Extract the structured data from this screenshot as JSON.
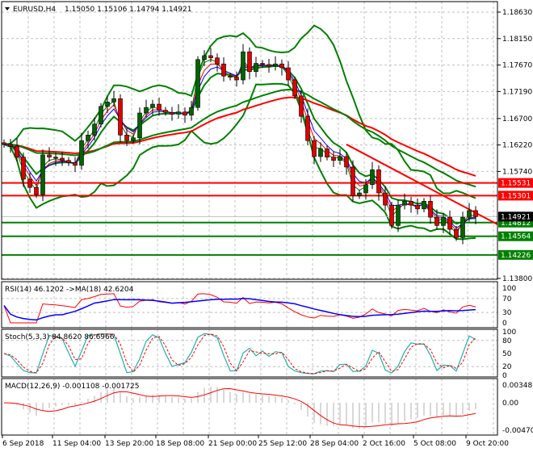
{
  "header": {
    "symbol": "EURUSD,H4",
    "ohlc": "1.15050 1.15106 1.14794 1.14921"
  },
  "panels": {
    "rsi_label": "RSI(14) 46.1202  ->MA(18) 42.6204",
    "stoch_label": "Stoch(5,3,3) 84.8620 86.6966",
    "macd_label": "MACD(12,26,9) -0.001108 -0.001725"
  },
  "colors": {
    "bull_candle": "#006400",
    "bear_candle": "#e00000",
    "bollinger": "#008000",
    "resistance": "#ff0000",
    "support": "#008000",
    "rsi": "#ff0000",
    "rsi_ma": "#0000ff",
    "stoch_main": "#20b2aa",
    "stoch_signal": "#ff0000",
    "macd_signal": "#ff0000",
    "macd_hist": "#b0b0b0"
  },
  "chart_data": {
    "type": "candlestick",
    "title": "EURUSD,H4",
    "price_ticks": [
      "1.18630",
      "1.18150",
      "1.17670",
      "1.17190",
      "1.16700",
      "1.16220",
      "1.15740",
      "1.13800"
    ],
    "ylim": [
      1.138,
      1.1893
    ],
    "x_tick_labels": [
      "6 Sep 2018",
      "11 Sep 04:00",
      "13 Sep 20:00",
      "18 Sep 08:00",
      "21 Sep 00:00",
      "25 Sep 12:00",
      "28 Sep 04:00",
      "2 Oct 16:00",
      "5 Oct 08:00",
      "9 Oct 20:00"
    ],
    "closes": [
      1.1623,
      1.162,
      1.16,
      1.156,
      1.1545,
      1.1532,
      1.1604,
      1.16,
      1.1598,
      1.1594,
      1.159,
      1.1585,
      1.163,
      1.164,
      1.166,
      1.1692,
      1.17,
      1.1706,
      1.164,
      1.163,
      1.1635,
      1.168,
      1.169,
      1.1696,
      1.1685,
      1.1681,
      1.1678,
      1.1682,
      1.1676,
      1.169,
      1.1777,
      1.1784,
      1.178,
      1.1769,
      1.1747,
      1.1745,
      1.174,
      1.1791,
      1.1755,
      1.177,
      1.1768,
      1.1765,
      1.1769,
      1.1762,
      1.174,
      1.1711,
      1.1674,
      1.163,
      1.1601,
      1.1615,
      1.16,
      1.1594,
      1.1601,
      1.1582,
      1.153,
      1.1535,
      1.155,
      1.1577,
      1.1535,
      1.1513,
      1.1476,
      1.1513,
      1.152,
      1.1513,
      1.1506,
      1.152,
      1.1491,
      1.1476,
      1.1491,
      1.1469,
      1.1454,
      1.1491,
      1.1503,
      1.14921
    ],
    "horizontal_levels": [
      {
        "label": "1.15531",
        "price": 1.15531,
        "kind": "resistance"
      },
      {
        "label": "1.15301",
        "price": 1.15301,
        "kind": "resistance"
      },
      {
        "label": "1.14812",
        "price": 1.14812,
        "kind": "support"
      },
      {
        "label": "1.14564",
        "price": 1.14564,
        "kind": "support"
      },
      {
        "label": "1.14226",
        "price": 1.14226,
        "kind": "support"
      }
    ],
    "current_price": {
      "label": "1.14921",
      "price": 1.14921
    },
    "trendline": {
      "from": {
        "bar": 53,
        "price": 1.1623
      },
      "to": {
        "bar": 76,
        "price": 1.1478
      }
    },
    "rsi": {
      "ticks": [
        "100",
        "70",
        "30",
        "0"
      ],
      "levels": [
        30,
        70
      ]
    },
    "stoch": {
      "ticks": [
        "100",
        "80",
        "50",
        "20",
        "0"
      ],
      "levels": [
        20,
        80
      ]
    },
    "macd": {
      "ticks": [
        "0.003487",
        "0.00",
        "-0.004707"
      ],
      "ylim": [
        -0.004707,
        0.003487
      ]
    }
  }
}
